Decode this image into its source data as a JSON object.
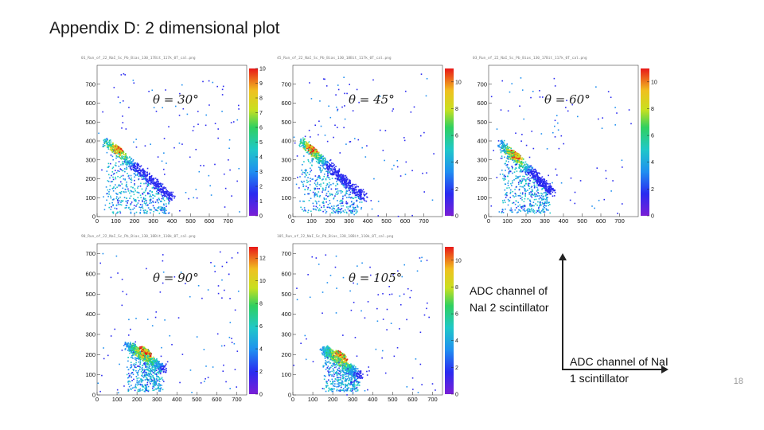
{
  "slide": {
    "title": "Appendix D: 2 dimensional plot",
    "page_number": "18"
  },
  "axes_legend": {
    "y_label_line1": "ADC channel of",
    "y_label_line2": "NaI 2 scintillator",
    "x_label_line1": "ADC channel of NaI",
    "x_label_line2": "1 scintillator"
  },
  "chart_data": [
    {
      "type": "heatmap",
      "header": "01_Run_of_22_NaI_Sc_Pb_Bias_130_17Bit_117k_0T_cal.png",
      "theta_label": "θ = 30°",
      "x_ticks": [
        "0",
        "100",
        "200",
        "300",
        "400",
        "500",
        "600",
        "700"
      ],
      "y_ticks": [
        "0",
        "100",
        "200",
        "300",
        "400",
        "500",
        "600",
        "700"
      ],
      "xlim": [
        0,
        800
      ],
      "ylim": [
        0,
        800
      ],
      "colorbar_ticks": [
        "0",
        "1",
        "2",
        "3",
        "4",
        "5",
        "6",
        "7",
        "8",
        "9",
        "10"
      ],
      "colorbar_range": [
        0,
        10
      ],
      "band": {
        "x_start": 40,
        "y_start": 400,
        "x_end": 400,
        "y_end": 100
      },
      "hot_spot": {
        "x": 110,
        "y": 360
      }
    },
    {
      "type": "heatmap",
      "header": "45_Run_of_22_NaI_Sc_Pb_Bias_130_18Bit_117k_0T_cal.png",
      "theta_label": "θ = 45°",
      "x_ticks": [
        "0",
        "100",
        "200",
        "300",
        "400",
        "500",
        "600",
        "700"
      ],
      "y_ticks": [
        "0",
        "100",
        "200",
        "300",
        "400",
        "500",
        "600",
        "700"
      ],
      "xlim": [
        0,
        800
      ],
      "ylim": [
        0,
        800
      ],
      "colorbar_ticks": [
        "0",
        "2",
        "4",
        "6",
        "8",
        "10"
      ],
      "colorbar_range": [
        0,
        11
      ],
      "band": {
        "x_start": 40,
        "y_start": 400,
        "x_end": 380,
        "y_end": 100
      },
      "hot_spot": {
        "x": 100,
        "y": 360
      }
    },
    {
      "type": "heatmap",
      "header": "03_Run_of_22_NaI_Sc_Pb_Bias_130_17Bit_117k_0T_cal.png",
      "theta_label": "θ = 60°",
      "x_ticks": [
        "0",
        "100",
        "200",
        "300",
        "400",
        "500",
        "600",
        "700"
      ],
      "y_ticks": [
        "0",
        "100",
        "200",
        "300",
        "400",
        "500",
        "600",
        "700"
      ],
      "xlim": [
        0,
        800
      ],
      "ylim": [
        0,
        800
      ],
      "colorbar_ticks": [
        "0",
        "2",
        "4",
        "6",
        "8",
        "10"
      ],
      "colorbar_range": [
        0,
        11
      ],
      "band": {
        "x_start": 60,
        "y_start": 390,
        "x_end": 340,
        "y_end": 130
      },
      "hot_spot": {
        "x": 140,
        "y": 330
      }
    },
    {
      "type": "heatmap",
      "header": "90_Run_of_22_NaI_Sc_Pb_Bias_130_18Bit_110k_0T_cal.png",
      "theta_label": "θ = 90°",
      "x_ticks": [
        "0",
        "100",
        "200",
        "300",
        "400",
        "500",
        "600",
        "700"
      ],
      "y_ticks": [
        "0",
        "100",
        "200",
        "300",
        "400",
        "500",
        "600",
        "700"
      ],
      "xlim": [
        0,
        750
      ],
      "ylim": [
        0,
        750
      ],
      "colorbar_ticks": [
        "0",
        "2",
        "4",
        "6",
        "8",
        "10",
        "12"
      ],
      "colorbar_range": [
        0,
        13
      ],
      "band": {
        "x_start": 150,
        "y_start": 250,
        "x_end": 330,
        "y_end": 130
      },
      "hot_spot": {
        "x": 240,
        "y": 220
      }
    },
    {
      "type": "heatmap",
      "header": "105_Run_of_22_NaI_Sc_Pb_Bias_130_18Bit_110k_0T_cal.png",
      "theta_label": "θ = 105°",
      "x_ticks": [
        "0",
        "100",
        "200",
        "300",
        "400",
        "500",
        "600",
        "700"
      ],
      "y_ticks": [
        "0",
        "100",
        "200",
        "300",
        "400",
        "500",
        "600",
        "700"
      ],
      "xlim": [
        0,
        750
      ],
      "ylim": [
        0,
        750
      ],
      "colorbar_ticks": [
        "0",
        "2",
        "4",
        "6",
        "8",
        "10"
      ],
      "colorbar_range": [
        0,
        11
      ],
      "band": {
        "x_start": 150,
        "y_start": 230,
        "x_end": 330,
        "y_end": 100
      },
      "hot_spot": {
        "x": 240,
        "y": 200
      }
    }
  ]
}
